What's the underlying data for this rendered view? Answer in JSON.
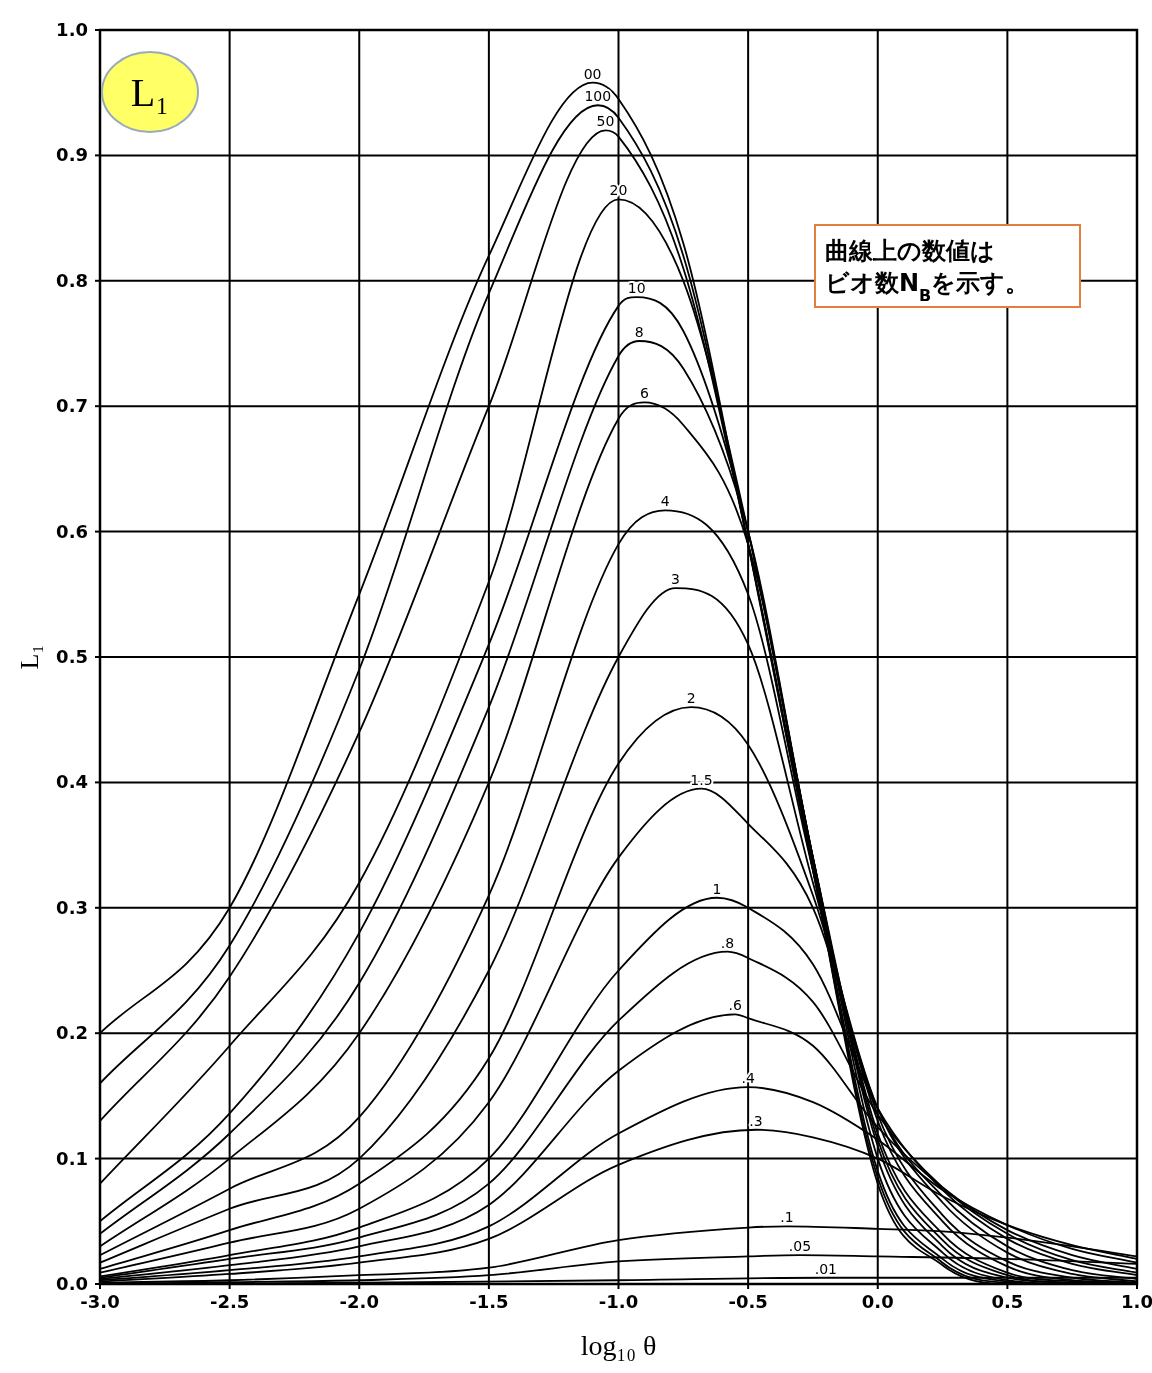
{
  "chart_data": {
    "type": "line",
    "title": "L₁",
    "xlabel": "log₁₀ θ",
    "ylabel": "L₁",
    "annotations": [
      "曲線上の数値は",
      "ビオ数N$_{B}$を示す。"
    ],
    "xlim": [
      -3,
      1
    ],
    "ylim": [
      0,
      1
    ],
    "xticks": [
      {
        "value": -3,
        "label": "-3.0"
      },
      {
        "value": -2.5,
        "label": "-2.5"
      },
      {
        "value": -2,
        "label": "-2.0"
      },
      {
        "value": -1.5,
        "label": "-1.5"
      },
      {
        "value": -1,
        "label": "-1.0"
      },
      {
        "value": -0.5,
        "label": "-0.5"
      },
      {
        "value": 0,
        "label": "0.0"
      },
      {
        "value": 0.5,
        "label": "0.5"
      },
      {
        "value": 1,
        "label": "1.0"
      }
    ],
    "yticks": [
      {
        "value": 0,
        "label": "0.0"
      },
      0.1,
      0.2,
      0.3,
      0.4,
      0.5,
      0.6,
      0.7,
      0.8,
      0.9,
      {
        "value": 1,
        "label": "1.0"
      }
    ],
    "grid": true,
    "series": [
      {
        "name": "00",
        "color": "#000000",
        "x": [
          -3,
          -2.5,
          -2,
          -1.5,
          -1.1,
          -1,
          -0.75,
          -0.5,
          -0.25,
          0,
          0.25,
          0.5,
          0.75,
          1
        ],
        "values": [
          0.2,
          0.3,
          0.55,
          0.82,
          0.958,
          0.945,
          0.83,
          0.59,
          0.33,
          0.08,
          0.015,
          0,
          0,
          0
        ]
      },
      {
        "name": "100",
        "color": "#000000",
        "x": [
          -3,
          -2.5,
          -2,
          -1.5,
          -1.08,
          -1,
          -0.75,
          -0.5,
          -0.25,
          0,
          0.25,
          0.5,
          0.75,
          1
        ],
        "values": [
          0.16,
          0.27,
          0.49,
          0.79,
          0.94,
          0.93,
          0.82,
          0.59,
          0.33,
          0.085,
          0.017,
          0.001,
          0,
          0
        ]
      },
      {
        "name": "50",
        "color": "#000000",
        "x": [
          -3,
          -2.5,
          -2,
          -1.5,
          -1.05,
          -1,
          -0.75,
          -0.5,
          -0.25,
          0,
          0.25,
          0.5,
          0.75,
          1
        ],
        "values": [
          0.13,
          0.245,
          0.44,
          0.7,
          0.92,
          0.915,
          0.81,
          0.59,
          0.335,
          0.09,
          0.02,
          0.002,
          0,
          0
        ]
      },
      {
        "name": "20",
        "color": "#000000",
        "x": [
          -3,
          -2.5,
          -2,
          -1.5,
          -1,
          -0.75,
          -0.5,
          -0.25,
          0,
          0.25,
          0.5,
          0.75,
          1
        ],
        "values": [
          0.08,
          0.19,
          0.32,
          0.56,
          0.865,
          0.8,
          0.6,
          0.34,
          0.1,
          0.025,
          0.003,
          0,
          0
        ]
      },
      {
        "name": "10",
        "color": "#000000",
        "x": [
          -3,
          -2.5,
          -2,
          -1.5,
          -1,
          -0.93,
          -0.75,
          -0.5,
          -0.25,
          0,
          0.25,
          0.5,
          0.75,
          1
        ],
        "values": [
          0.05,
          0.136,
          0.28,
          0.51,
          0.78,
          0.787,
          0.76,
          0.6,
          0.34,
          0.11,
          0.03,
          0.005,
          0.001,
          0
        ]
      },
      {
        "name": "8",
        "color": "#000000",
        "x": [
          -3,
          -2.5,
          -2,
          -1.5,
          -1,
          -0.92,
          -0.75,
          -0.5,
          -0.25,
          0,
          0.25,
          0.5,
          0.75,
          1
        ],
        "values": [
          0.04,
          0.12,
          0.24,
          0.46,
          0.74,
          0.752,
          0.73,
          0.6,
          0.34,
          0.115,
          0.035,
          0.007,
          0.001,
          0
        ]
      },
      {
        "name": "6",
        "color": "#000000",
        "x": [
          -3,
          -2.5,
          -2,
          -1.5,
          -1,
          -0.9,
          -0.75,
          -0.5,
          -0.25,
          0,
          0.25,
          0.5,
          0.75,
          1
        ],
        "values": [
          0.03,
          0.1,
          0.2,
          0.4,
          0.69,
          0.703,
          0.685,
          0.59,
          0.34,
          0.12,
          0.04,
          0.009,
          0.002,
          0
        ]
      },
      {
        "name": "4",
        "color": "#000000",
        "x": [
          -3,
          -2.5,
          -2,
          -1.5,
          -1,
          -0.82,
          -0.5,
          -0.25,
          0,
          0.25,
          0.5,
          0.75,
          1
        ],
        "values": [
          0.023,
          0.076,
          0.133,
          0.31,
          0.59,
          0.617,
          0.55,
          0.33,
          0.13,
          0.05,
          0.014,
          0.003,
          0.001
        ]
      },
      {
        "name": "3",
        "color": "#000000",
        "x": [
          -3,
          -2.5,
          -2,
          -1.5,
          -1,
          -0.78,
          -0.5,
          -0.25,
          0,
          0.25,
          0.5,
          0.75,
          1
        ],
        "values": [
          0.017,
          0.06,
          0.1,
          0.25,
          0.5,
          0.555,
          0.51,
          0.32,
          0.135,
          0.055,
          0.018,
          0.005,
          0.001
        ]
      },
      {
        "name": "2",
        "color": "#000000",
        "x": [
          -3,
          -2.5,
          -2,
          -1.5,
          -1,
          -0.72,
          -0.5,
          -0.25,
          0,
          0.25,
          0.5,
          0.75,
          1
        ],
        "values": [
          0.012,
          0.043,
          0.08,
          0.18,
          0.415,
          0.46,
          0.43,
          0.31,
          0.14,
          0.065,
          0.025,
          0.008,
          0.002
        ]
      },
      {
        "name": "1.5",
        "color": "#000000",
        "x": [
          -3,
          -2.5,
          -2,
          -1.5,
          -1,
          -0.68,
          -0.5,
          -0.25,
          0,
          0.25,
          0.5,
          0.75,
          1
        ],
        "values": [
          0.009,
          0.033,
          0.06,
          0.145,
          0.34,
          0.395,
          0.367,
          0.3,
          0.14,
          0.07,
          0.03,
          0.011,
          0.004
        ]
      },
      {
        "name": "1",
        "color": "#000000",
        "x": [
          -3,
          -2.5,
          -2,
          -1.5,
          -1,
          -0.62,
          -0.5,
          -0.25,
          0,
          0.25,
          0.5,
          0.75,
          1
        ],
        "values": [
          0.006,
          0.023,
          0.045,
          0.1,
          0.25,
          0.308,
          0.3,
          0.255,
          0.14,
          0.075,
          0.036,
          0.016,
          0.007
        ]
      },
      {
        "name": ".8",
        "color": "#000000",
        "x": [
          -3,
          -2.5,
          -2,
          -1.5,
          -1,
          -0.58,
          -0.5,
          -0.25,
          0,
          0.25,
          0.5,
          0.75,
          1
        ],
        "values": [
          0.005,
          0.02,
          0.037,
          0.08,
          0.21,
          0.265,
          0.26,
          0.225,
          0.135,
          0.077,
          0.04,
          0.019,
          0.009
        ]
      },
      {
        "name": ".6",
        "color": "#000000",
        "x": [
          -3,
          -2.5,
          -2,
          -1.5,
          -1,
          -0.55,
          -0.5,
          -0.25,
          0,
          0.25,
          0.5,
          0.75,
          1
        ],
        "values": [
          0.004,
          0.015,
          0.03,
          0.063,
          0.17,
          0.215,
          0.212,
          0.19,
          0.125,
          0.077,
          0.043,
          0.023,
          0.012
        ]
      },
      {
        "name": ".4",
        "color": "#000000",
        "x": [
          -3,
          -2.5,
          -2,
          -1.5,
          -1,
          -0.5,
          -0.25,
          0,
          0.25,
          0.5,
          0.75,
          1
        ],
        "values": [
          0.003,
          0.011,
          0.022,
          0.046,
          0.12,
          0.157,
          0.145,
          0.115,
          0.075,
          0.047,
          0.028,
          0.017
        ]
      },
      {
        "name": ".3",
        "color": "#000000",
        "x": [
          -3,
          -2.5,
          -2,
          -1.5,
          -1,
          -0.47,
          -0.25,
          0,
          0.25,
          0.5,
          0.75,
          1
        ],
        "values": [
          0.002,
          0.008,
          0.017,
          0.036,
          0.095,
          0.123,
          0.117,
          0.1,
          0.07,
          0.047,
          0.031,
          0.02
        ]
      },
      {
        "name": ".1",
        "color": "#000000",
        "x": [
          -3,
          -2.5,
          -2,
          -1.5,
          -1,
          -0.5,
          -0.35,
          0,
          0.25,
          0.5,
          0.75,
          1
        ],
        "values": [
          0.001,
          0.003,
          0.007,
          0.013,
          0.035,
          0.045,
          0.046,
          0.044,
          0.042,
          0.037,
          0.03,
          0.022
        ]
      },
      {
        "name": ".05",
        "color": "#000000",
        "x": [
          -3,
          -2.5,
          -2,
          -1.5,
          -1,
          -0.5,
          -0.3,
          0,
          0.5,
          1
        ],
        "values": [
          0,
          0.0015,
          0.003,
          0.007,
          0.018,
          0.022,
          0.023,
          0.022,
          0.02,
          0.016
        ]
      },
      {
        "name": ".01",
        "color": "#000000",
        "x": [
          -3,
          -2,
          -1,
          -0.2,
          0.5,
          1
        ],
        "values": [
          0,
          0.001,
          0.003,
          0.005,
          0.005,
          0.005
        ]
      }
    ]
  }
}
